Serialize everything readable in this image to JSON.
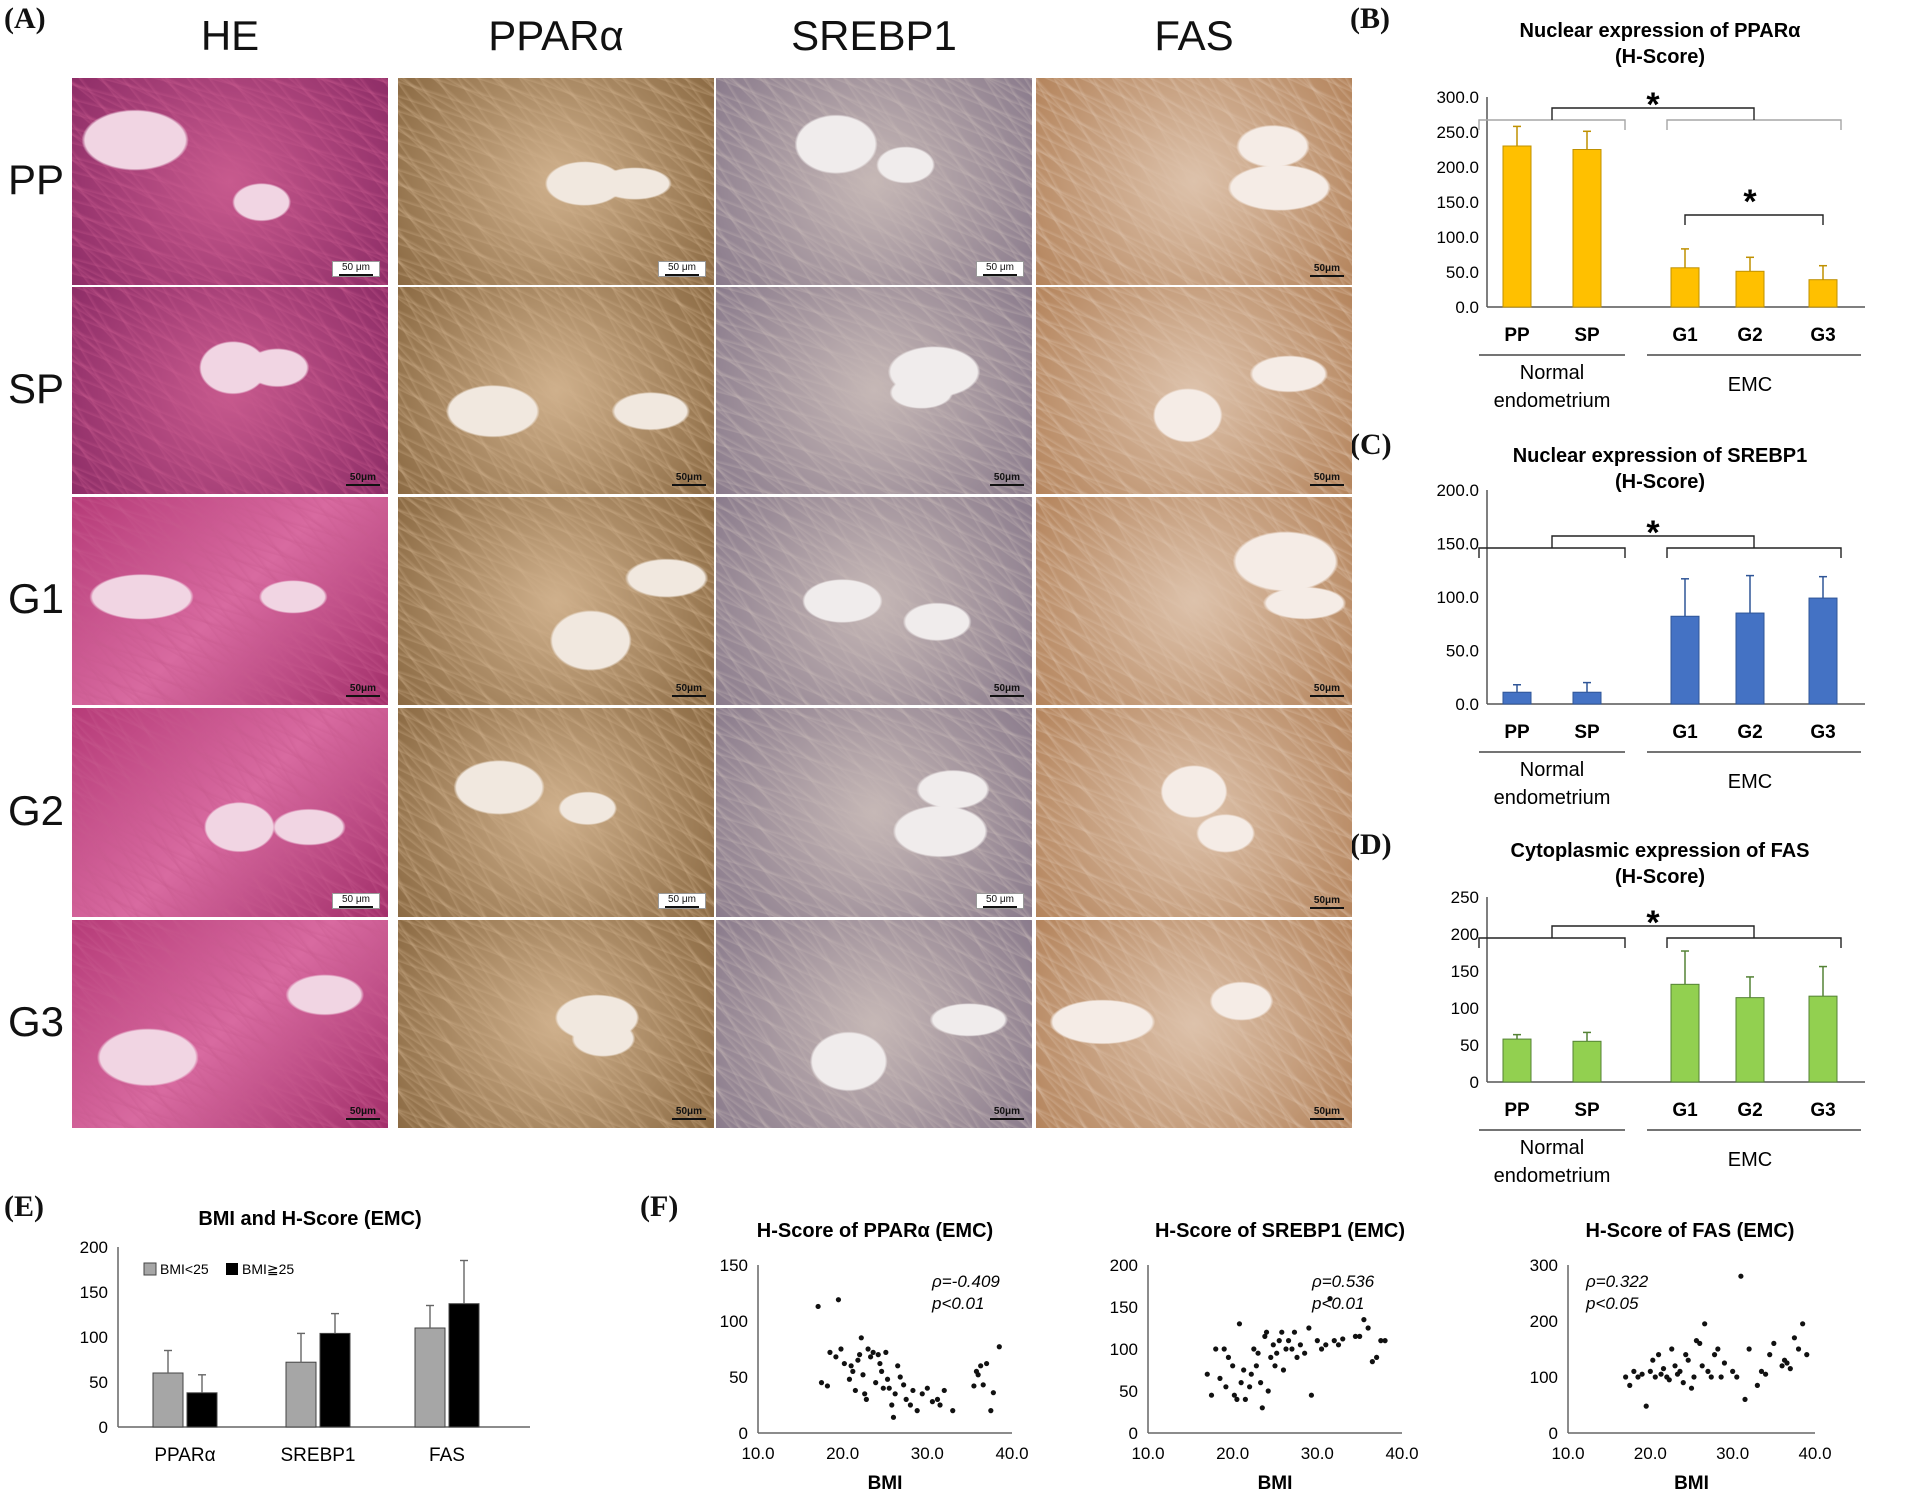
{
  "panel_letters": {
    "A": "(A)",
    "B": "(B)",
    "C": "(C)",
    "D": "(D)",
    "E": "(E)",
    "F": "(F)"
  },
  "micrographs": {
    "columns": [
      "HE",
      "PPARα",
      "SREBP1",
      "FAS"
    ],
    "rows": [
      "PP",
      "SP",
      "G1",
      "G2",
      "G3"
    ],
    "scale_labels": [
      [
        "50 μm",
        "50 μm",
        "50 μm",
        "50μm"
      ],
      [
        "50μm",
        "50μm",
        "50μm",
        "50μm"
      ],
      [
        "50μm",
        "50μm",
        "50μm",
        "50μm"
      ],
      [
        "50 μm",
        "50 μm",
        "50 μm",
        "50μm"
      ],
      [
        "50μm",
        "50μm",
        "50μm",
        "50μm"
      ]
    ],
    "stain_colors": {
      "HE": "#c8658f",
      "PPARα": "#b9925f",
      "SREBP1": "#b9aaa6",
      "FAS": "#d2b08f"
    }
  },
  "chart_data": [
    {
      "id": "B",
      "type": "bar",
      "title": "Nuclear expression of PPARα",
      "subtitle": "(H-Score)",
      "categories": [
        "PP",
        "SP",
        "G1",
        "G2",
        "G3"
      ],
      "values": [
        230,
        225,
        56,
        51,
        39
      ],
      "errors": [
        28,
        26,
        27,
        20,
        20
      ],
      "ylim": [
        0,
        300
      ],
      "yticks": [
        "0.0",
        "50.0",
        "100.0",
        "150.0",
        "200.0",
        "250.0",
        "300.0"
      ],
      "group_labels": {
        "normal": [
          "Normal",
          "endometrium"
        ],
        "emc": "EMC"
      },
      "significance": [
        "*",
        "*"
      ],
      "color": "#ffc000"
    },
    {
      "id": "C",
      "type": "bar",
      "title": "Nuclear expression of SREBP1",
      "subtitle": "(H-Score)",
      "categories": [
        "PP",
        "SP",
        "G1",
        "G2",
        "G3"
      ],
      "values": [
        11,
        11,
        82,
        85,
        99
      ],
      "errors": [
        7,
        9,
        35,
        35,
        20
      ],
      "ylim": [
        0,
        200
      ],
      "yticks": [
        "0.0",
        "50.0",
        "100.0",
        "150.0",
        "200.0"
      ],
      "group_labels": {
        "normal": [
          "Normal",
          "endometrium"
        ],
        "emc": "EMC"
      },
      "significance": [
        "*"
      ],
      "color": "#4472c4"
    },
    {
      "id": "D",
      "type": "bar",
      "title": "Cytoplasmic expression of FAS",
      "subtitle": "(H-Score)",
      "categories": [
        "PP",
        "SP",
        "G1",
        "G2",
        "G3"
      ],
      "values": [
        58,
        55,
        132,
        114,
        116
      ],
      "errors": [
        6,
        12,
        45,
        28,
        40
      ],
      "ylim": [
        0,
        250
      ],
      "yticks": [
        "0",
        "50",
        "100",
        "150",
        "200",
        "250"
      ],
      "group_labels": {
        "normal": [
          "Normal",
          "endometrium"
        ],
        "emc": "EMC"
      },
      "significance": [
        "*"
      ],
      "color": "#92d050"
    },
    {
      "id": "E",
      "type": "bar",
      "title": "BMI and H-Score (EMC)",
      "categories": [
        "PPARα",
        "SREBP1",
        "FAS"
      ],
      "series": [
        {
          "name": "BMI<25",
          "values": [
            60,
            72,
            110
          ],
          "errors": [
            25,
            32,
            25
          ],
          "color": "#a6a6a6"
        },
        {
          "name": "BMI≧25",
          "values": [
            38,
            104,
            137
          ],
          "errors": [
            20,
            22,
            48
          ],
          "color": "#000000"
        }
      ],
      "ylim": [
        0,
        200
      ],
      "yticks": [
        "0",
        "50",
        "100",
        "150",
        "200"
      ],
      "legend": "top-left"
    },
    {
      "id": "F1",
      "type": "scatter",
      "title": "H-Score of PPARα (EMC)",
      "xlabel": "BMI",
      "xlim": [
        10,
        40
      ],
      "ylim": [
        0,
        150
      ],
      "xticks": [
        "10.0",
        "20.0",
        "30.0",
        "40.0"
      ],
      "yticks": [
        "0",
        "50",
        "100",
        "150"
      ],
      "annotation": [
        "ρ=-0.409",
        "p<0.01"
      ],
      "points": [
        [
          17.1,
          113
        ],
        [
          19.5,
          119
        ],
        [
          17.5,
          45
        ],
        [
          18.2,
          42
        ],
        [
          18.5,
          72
        ],
        [
          19.2,
          68
        ],
        [
          19.8,
          75
        ],
        [
          20.2,
          62
        ],
        [
          20.8,
          48
        ],
        [
          21,
          60
        ],
        [
          21.2,
          55
        ],
        [
          21.5,
          38
        ],
        [
          21.8,
          65
        ],
        [
          22,
          70
        ],
        [
          22.2,
          85
        ],
        [
          22.4,
          52
        ],
        [
          22.6,
          35
        ],
        [
          22.8,
          30
        ],
        [
          23,
          75
        ],
        [
          23.3,
          68
        ],
        [
          23.6,
          72
        ],
        [
          23.9,
          45
        ],
        [
          24.2,
          70
        ],
        [
          24.4,
          62
        ],
        [
          24.6,
          55
        ],
        [
          24.8,
          40
        ],
        [
          25.1,
          72
        ],
        [
          25.3,
          48
        ],
        [
          25.5,
          40
        ],
        [
          25.8,
          25
        ],
        [
          26,
          14
        ],
        [
          26.2,
          35
        ],
        [
          26.5,
          60
        ],
        [
          26.8,
          50
        ],
        [
          27.2,
          43
        ],
        [
          27.5,
          30
        ],
        [
          28,
          25
        ],
        [
          28.3,
          38
        ],
        [
          28.8,
          20
        ],
        [
          29.4,
          35
        ],
        [
          30,
          40
        ],
        [
          30.6,
          28
        ],
        [
          31.2,
          30
        ],
        [
          31.5,
          25
        ],
        [
          32,
          38
        ],
        [
          33,
          20
        ],
        [
          35.5,
          42
        ],
        [
          35.8,
          55
        ],
        [
          36,
          52
        ],
        [
          36.3,
          60
        ],
        [
          36.6,
          43
        ],
        [
          37,
          62
        ],
        [
          37.5,
          20
        ],
        [
          37.8,
          36
        ],
        [
          38.5,
          77
        ]
      ]
    },
    {
      "id": "F2",
      "type": "scatter",
      "title": "H-Score of SREBP1 (EMC)",
      "xlabel": "BMI",
      "xlim": [
        10,
        40
      ],
      "ylim": [
        0,
        200
      ],
      "xticks": [
        "10.0",
        "20.0",
        "30.0",
        "40.0"
      ],
      "yticks": [
        "0",
        "50",
        "100",
        "150",
        "200"
      ],
      "annotation": [
        "ρ=0.536",
        "p<0.01"
      ],
      "points": [
        [
          17,
          70
        ],
        [
          17.5,
          45
        ],
        [
          18,
          100
        ],
        [
          18.5,
          65
        ],
        [
          19,
          100
        ],
        [
          19.2,
          55
        ],
        [
          19.5,
          90
        ],
        [
          20,
          80
        ],
        [
          20.2,
          45
        ],
        [
          20.5,
          40
        ],
        [
          20.8,
          130
        ],
        [
          21,
          60
        ],
        [
          21.3,
          75
        ],
        [
          21.5,
          40
        ],
        [
          22,
          55
        ],
        [
          22.2,
          70
        ],
        [
          22.5,
          100
        ],
        [
          22.8,
          80
        ],
        [
          23,
          95
        ],
        [
          23.3,
          60
        ],
        [
          23.5,
          30
        ],
        [
          23.8,
          115
        ],
        [
          24,
          120
        ],
        [
          24.2,
          50
        ],
        [
          24.5,
          90
        ],
        [
          24.8,
          105
        ],
        [
          25,
          80
        ],
        [
          25.2,
          95
        ],
        [
          25.5,
          110
        ],
        [
          25.8,
          120
        ],
        [
          26,
          75
        ],
        [
          26.3,
          100
        ],
        [
          26.6,
          110
        ],
        [
          27,
          100
        ],
        [
          27.3,
          120
        ],
        [
          27.6,
          90
        ],
        [
          28,
          105
        ],
        [
          28.5,
          95
        ],
        [
          29,
          125
        ],
        [
          29.3,
          45
        ],
        [
          30,
          110
        ],
        [
          30.5,
          100
        ],
        [
          31,
          105
        ],
        [
          31.5,
          160
        ],
        [
          32,
          110
        ],
        [
          32.5,
          105
        ],
        [
          33,
          112
        ],
        [
          34.5,
          115
        ],
        [
          35,
          115
        ],
        [
          35.5,
          135
        ],
        [
          36,
          125
        ],
        [
          36.5,
          85
        ],
        [
          37,
          90
        ],
        [
          37.5,
          110
        ],
        [
          38,
          110
        ]
      ]
    },
    {
      "id": "F3",
      "type": "scatter",
      "title": "H-Score of FAS (EMC)",
      "xlabel": "BMI",
      "xlim": [
        10,
        40
      ],
      "ylim": [
        0,
        300
      ],
      "xticks": [
        "10.0",
        "20.0",
        "30.0",
        "40.0"
      ],
      "yticks": [
        "0",
        "100",
        "200",
        "300"
      ],
      "annotation": [
        "ρ=0.322",
        "p<0.05"
      ],
      "points": [
        [
          17,
          100
        ],
        [
          17.5,
          85
        ],
        [
          18,
          110
        ],
        [
          18.5,
          100
        ],
        [
          19,
          105
        ],
        [
          19.5,
          48
        ],
        [
          20,
          110
        ],
        [
          20.3,
          130
        ],
        [
          20.6,
          100
        ],
        [
          21,
          140
        ],
        [
          21.3,
          105
        ],
        [
          21.6,
          115
        ],
        [
          22,
          100
        ],
        [
          22.3,
          95
        ],
        [
          22.6,
          150
        ],
        [
          23,
          120
        ],
        [
          23.3,
          105
        ],
        [
          23.6,
          110
        ],
        [
          24,
          90
        ],
        [
          24.3,
          140
        ],
        [
          24.6,
          130
        ],
        [
          25,
          80
        ],
        [
          25.3,
          100
        ],
        [
          25.6,
          165
        ],
        [
          26,
          160
        ],
        [
          26.3,
          120
        ],
        [
          26.6,
          195
        ],
        [
          27,
          110
        ],
        [
          27.4,
          100
        ],
        [
          27.8,
          140
        ],
        [
          28.2,
          150
        ],
        [
          28.6,
          100
        ],
        [
          29,
          125
        ],
        [
          30,
          110
        ],
        [
          30.5,
          100
        ],
        [
          31,
          280
        ],
        [
          31.5,
          60
        ],
        [
          32,
          150
        ],
        [
          33,
          85
        ],
        [
          33.5,
          110
        ],
        [
          34,
          105
        ],
        [
          34.5,
          140
        ],
        [
          35,
          160
        ],
        [
          36,
          120
        ],
        [
          36.3,
          130
        ],
        [
          36.6,
          125
        ],
        [
          37,
          115
        ],
        [
          37.5,
          170
        ],
        [
          38,
          150
        ],
        [
          38.5,
          195
        ],
        [
          39,
          140
        ]
      ]
    }
  ]
}
